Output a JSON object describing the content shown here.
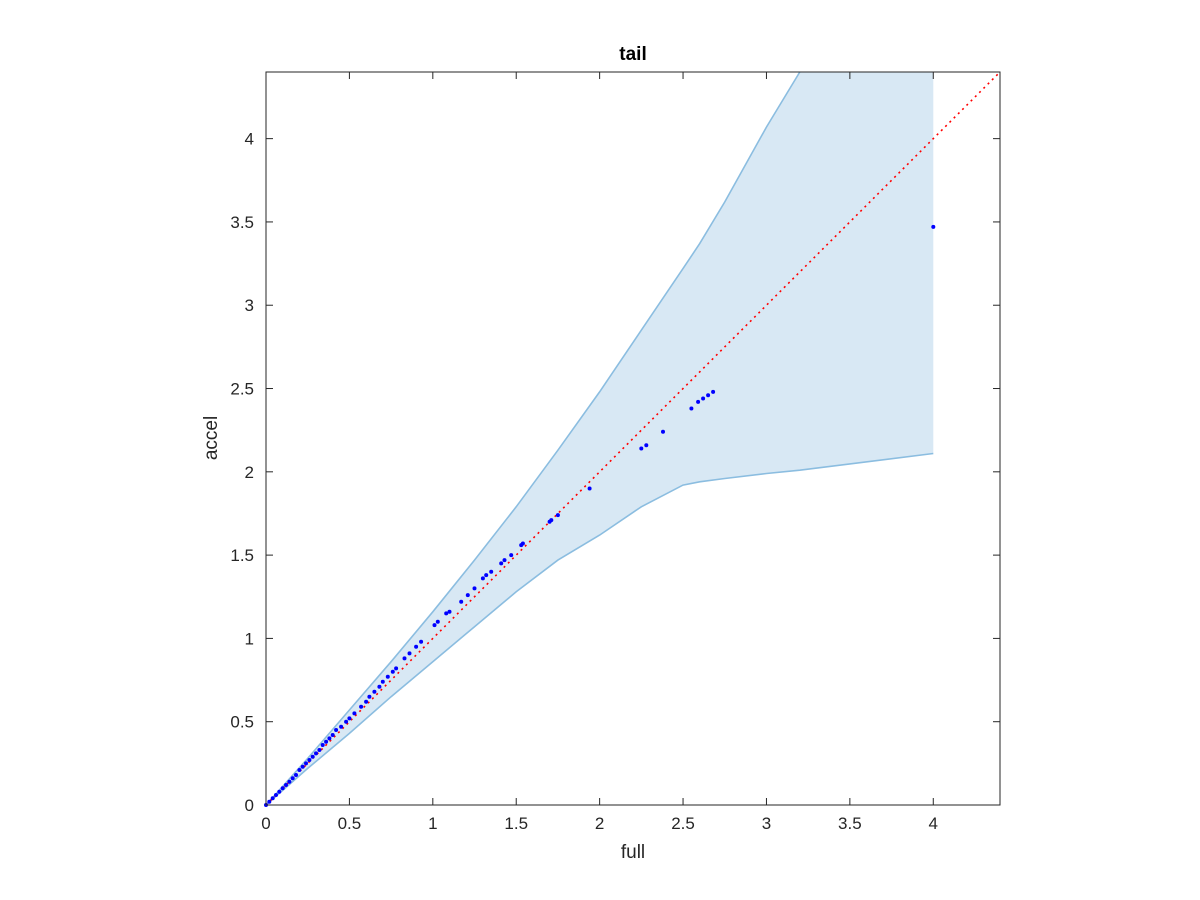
{
  "chart_data": {
    "type": "scatter",
    "title": "tail",
    "xlabel": "full",
    "ylabel": "accel",
    "xlim": [
      0,
      4.4
    ],
    "ylim": [
      0,
      4.4
    ],
    "xticks": [
      0,
      0.5,
      1,
      1.5,
      2,
      2.5,
      3,
      3.5,
      4
    ],
    "yticks": [
      0,
      0.5,
      1,
      1.5,
      2,
      2.5,
      3,
      3.5,
      4
    ],
    "xtick_labels": [
      "0",
      "0.5",
      "1",
      "1.5",
      "2",
      "2.5",
      "3",
      "3.5",
      "4"
    ],
    "ytick_labels": [
      "0",
      "0.5",
      "1",
      "1.5",
      "2",
      "2.5",
      "3",
      "3.5",
      "4"
    ],
    "grid": false,
    "reference_line": {
      "style": "dotted",
      "color": "#ff0000",
      "points": [
        [
          0,
          0
        ],
        [
          4.4,
          4.4
        ]
      ]
    },
    "band": {
      "fill": "#d8e8f4",
      "stroke": "#8bbde0",
      "x": [
        0,
        0.25,
        0.5,
        0.75,
        1.0,
        1.25,
        1.5,
        1.75,
        2.0,
        2.25,
        2.5,
        2.6,
        2.75,
        3.0,
        3.2,
        4.0
      ],
      "upper": [
        0,
        0.28,
        0.57,
        0.86,
        1.16,
        1.47,
        1.79,
        2.13,
        2.48,
        2.85,
        3.22,
        3.37,
        3.62,
        4.07,
        4.4,
        4.4
      ],
      "lower": [
        0,
        0.22,
        0.43,
        0.65,
        0.86,
        1.07,
        1.28,
        1.47,
        1.62,
        1.79,
        1.92,
        1.94,
        1.96,
        1.99,
        2.01,
        2.11
      ]
    },
    "series": [
      {
        "color": "#0000ff",
        "x": [
          0,
          0.02,
          0.04,
          0.06,
          0.08,
          0.1,
          0.12,
          0.14,
          0.16,
          0.18,
          0.2,
          0.22,
          0.24,
          0.26,
          0.28,
          0.3,
          0.32,
          0.34,
          0.36,
          0.38,
          0.4,
          0.42,
          0.45,
          0.48,
          0.5,
          0.53,
          0.57,
          0.6,
          0.62,
          0.65,
          0.68,
          0.7,
          0.73,
          0.76,
          0.78,
          0.83,
          0.86,
          0.9,
          0.93,
          1.01,
          1.03,
          1.08,
          1.1,
          1.17,
          1.21,
          1.25,
          1.3,
          1.32,
          1.35,
          1.41,
          1.43,
          1.47,
          1.53,
          1.54,
          1.7,
          1.71,
          1.75,
          1.94,
          2.25,
          2.28,
          2.38,
          2.55,
          2.59,
          2.62,
          2.65,
          2.68,
          4.0
        ],
        "y": [
          0,
          0.02,
          0.04,
          0.06,
          0.08,
          0.1,
          0.12,
          0.14,
          0.16,
          0.18,
          0.21,
          0.23,
          0.25,
          0.27,
          0.29,
          0.31,
          0.33,
          0.36,
          0.38,
          0.4,
          0.42,
          0.45,
          0.47,
          0.5,
          0.52,
          0.55,
          0.59,
          0.62,
          0.65,
          0.68,
          0.71,
          0.74,
          0.77,
          0.8,
          0.82,
          0.88,
          0.91,
          0.95,
          0.98,
          1.08,
          1.1,
          1.15,
          1.16,
          1.22,
          1.26,
          1.3,
          1.36,
          1.38,
          1.4,
          1.45,
          1.47,
          1.5,
          1.56,
          1.57,
          1.7,
          1.71,
          1.74,
          1.9,
          2.14,
          2.16,
          2.24,
          2.38,
          2.42,
          2.44,
          2.46,
          2.48,
          3.47
        ]
      }
    ]
  }
}
